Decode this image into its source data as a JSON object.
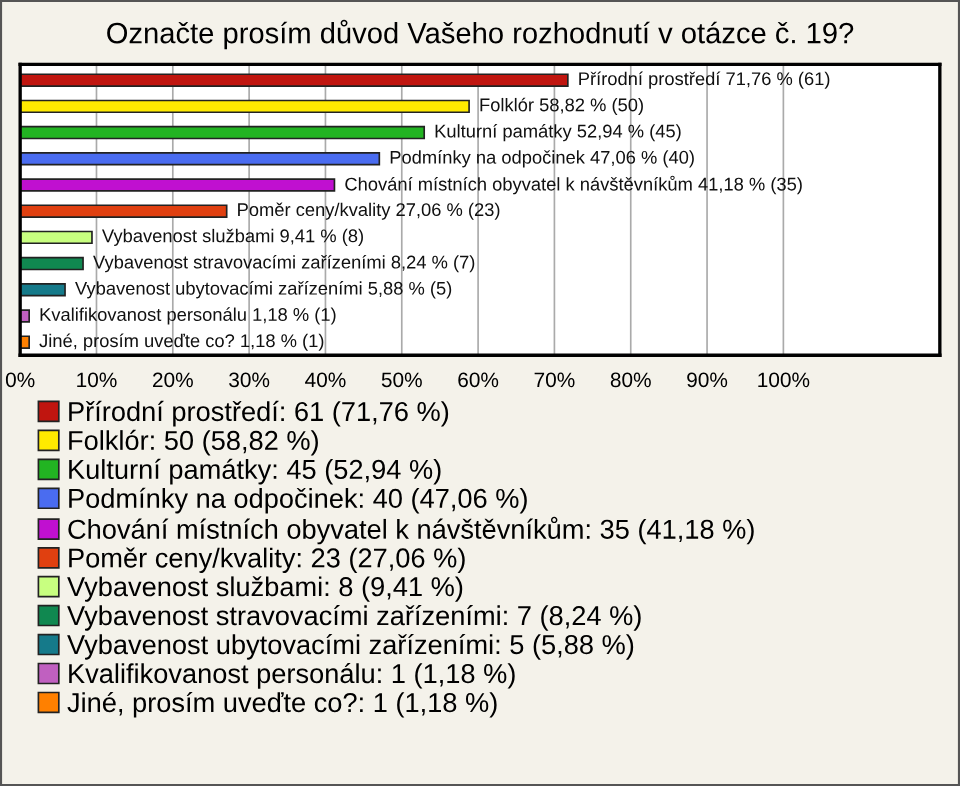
{
  "chart_data": {
    "type": "bar",
    "orientation": "horizontal",
    "title": "Označte prosím důvod Vašeho rozhodnutí v otázce č. 19?",
    "categories": [
      null,
      null,
      null,
      null,
      null,
      null,
      null,
      null,
      null,
      null,
      null
    ],
    "xlim": [
      0,
      120.5
    ],
    "xticks": [
      {
        "value": 0,
        "label": "0%"
      },
      {
        "value": 10,
        "label": "10%"
      },
      {
        "value": 20,
        "label": "20%"
      },
      {
        "value": 30,
        "label": "30%"
      },
      {
        "value": 40,
        "label": "40%"
      },
      {
        "value": 50,
        "label": "50%"
      },
      {
        "value": 60,
        "label": "60%"
      },
      {
        "value": 70,
        "label": "70%"
      },
      {
        "value": 80,
        "label": "80%"
      },
      {
        "value": 90,
        "label": "90%"
      },
      {
        "value": 100,
        "label": "100%"
      }
    ],
    "grid": "x",
    "legend": "bottom",
    "series": [
      {
        "name": "Přírodní prostředí: 61 (71,76 %)",
        "color": "#c0150f",
        "values": [
          71.76,
          null,
          null,
          null,
          null,
          null,
          null,
          null,
          null,
          null,
          null
        ],
        "value_labels": [
          "Přírodní prostředí 71,76 % (61)",
          null,
          null,
          null,
          null,
          null,
          null,
          null,
          null,
          null,
          null
        ]
      },
      {
        "name": "Folklór: 50 (58,82 %)",
        "color": "#ffea00",
        "values": [
          null,
          58.82,
          null,
          null,
          null,
          null,
          null,
          null,
          null,
          null,
          null
        ],
        "value_labels": [
          null,
          "Folklór 58,82 % (50)",
          null,
          null,
          null,
          null,
          null,
          null,
          null,
          null,
          null
        ]
      },
      {
        "name": "Kulturní památky: 45 (52,94 %)",
        "color": "#22b422",
        "values": [
          null,
          null,
          52.94,
          null,
          null,
          null,
          null,
          null,
          null,
          null,
          null
        ],
        "value_labels": [
          null,
          null,
          "Kulturní památky 52,94 % (45)",
          null,
          null,
          null,
          null,
          null,
          null,
          null,
          null
        ]
      },
      {
        "name": "Podmínky na odpočinek: 40 (47,06 %)",
        "color": "#4a6cf0",
        "values": [
          null,
          null,
          null,
          47.06,
          null,
          null,
          null,
          null,
          null,
          null,
          null
        ],
        "value_labels": [
          null,
          null,
          null,
          "Podmínky na odpočinek 47,06 % (40)",
          null,
          null,
          null,
          null,
          null,
          null,
          null
        ]
      },
      {
        "name": "Chování místních obyvatel k návštěvníkům: 35 (41,18 %)",
        "color": "#c010d0",
        "values": [
          null,
          null,
          null,
          null,
          41.18,
          null,
          null,
          null,
          null,
          null,
          null
        ],
        "value_labels": [
          null,
          null,
          null,
          null,
          "Chování místních obyvatel k návštěvníkům 41,18 % (35)",
          null,
          null,
          null,
          null,
          null,
          null
        ]
      },
      {
        "name": "Poměr ceny/kvality: 23 (27,06 %)",
        "color": "#e04010",
        "values": [
          null,
          null,
          null,
          null,
          null,
          27.06,
          null,
          null,
          null,
          null,
          null
        ],
        "value_labels": [
          null,
          null,
          null,
          null,
          null,
          "Poměr ceny/kvality 27,06 % (23)",
          null,
          null,
          null,
          null,
          null
        ]
      },
      {
        "name": "Vybavenost službami: 8 (9,41 %)",
        "color": "#c8ff80",
        "values": [
          null,
          null,
          null,
          null,
          null,
          null,
          9.41,
          null,
          null,
          null,
          null
        ],
        "value_labels": [
          null,
          null,
          null,
          null,
          null,
          null,
          "Vybavenost službami 9,41 % (8)",
          null,
          null,
          null,
          null
        ]
      },
      {
        "name": "Vybavenost stravovacími zařízeními: 7 (8,24 %)",
        "color": "#108850",
        "values": [
          null,
          null,
          null,
          null,
          null,
          null,
          null,
          8.24,
          null,
          null,
          null
        ],
        "value_labels": [
          null,
          null,
          null,
          null,
          null,
          null,
          null,
          "Vybavenost stravovacími zařízeními 8,24 % (7)",
          null,
          null,
          null
        ]
      },
      {
        "name": "Vybavenost ubytovacími zařízeními: 5 (5,88 %)",
        "color": "#157a8a",
        "values": [
          null,
          null,
          null,
          null,
          null,
          null,
          null,
          null,
          5.88,
          null,
          null
        ],
        "value_labels": [
          null,
          null,
          null,
          null,
          null,
          null,
          null,
          null,
          "Vybavenost ubytovacími zařízeními 5,88 % (5)",
          null,
          null
        ]
      },
      {
        "name": "Kvalifikovanost personálu: 1 (1,18 %)",
        "color": "#c060c0",
        "values": [
          null,
          null,
          null,
          null,
          null,
          null,
          null,
          null,
          null,
          1.18,
          null
        ],
        "value_labels": [
          null,
          null,
          null,
          null,
          null,
          null,
          null,
          null,
          null,
          "Kvalifikovanost personálu 1,18 % (1)",
          null
        ]
      },
      {
        "name": "Jiné, prosím uveďte co?: 1 (1,18 %)",
        "color": "#ff8000",
        "values": [
          null,
          null,
          null,
          null,
          null,
          null,
          null,
          null,
          null,
          null,
          1.18
        ],
        "value_labels": [
          null,
          null,
          null,
          null,
          null,
          null,
          null,
          null,
          null,
          null,
          "Jiné, prosím uveďte co? 1,18 % (1)"
        ]
      }
    ]
  }
}
